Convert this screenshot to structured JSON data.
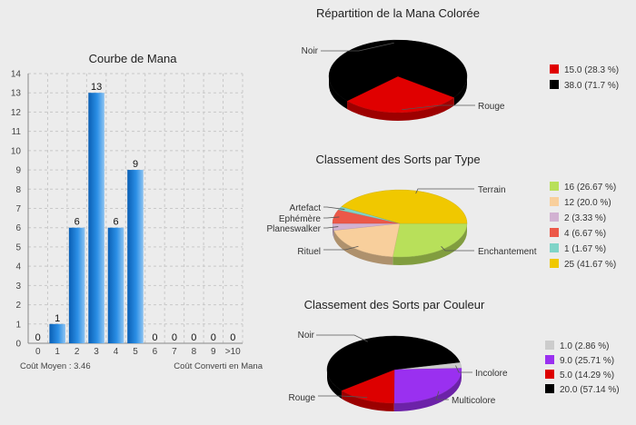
{
  "chart_data": [
    {
      "type": "bar",
      "title": "Courbe de Mana",
      "categories": [
        "0",
        "1",
        "2",
        "3",
        "4",
        "5",
        "6",
        "7",
        "8",
        "9",
        ">10"
      ],
      "values": [
        0,
        1,
        6,
        13,
        6,
        9,
        0,
        0,
        0,
        0,
        0
      ],
      "ylim": [
        0,
        14
      ],
      "yticks": [
        0,
        1,
        2,
        3,
        4,
        5,
        6,
        7,
        8,
        9,
        10,
        11,
        12,
        13,
        14
      ],
      "xlabel": "Coût Converti en Mana",
      "footer_left": "Coût Moyen : 3.46",
      "grid": true,
      "color": "#1f7fd4"
    },
    {
      "type": "pie",
      "title": "Répartition de la Mana Colorée",
      "slices": [
        {
          "name": "Rouge",
          "value": 15.0,
          "legend": "15.0 (28.3 %)",
          "color": "#e00000"
        },
        {
          "name": "Noir",
          "value": 38.0,
          "legend": "38.0 (71.7 %)",
          "color": "#000000"
        }
      ],
      "legend_position": "right"
    },
    {
      "type": "pie",
      "title": "Classement des Sorts par Type",
      "slices": [
        {
          "name": "Enchantement",
          "value": 16,
          "legend": "16 (26.67 %)",
          "color": "#b8e05a"
        },
        {
          "name": "Rituel",
          "value": 12,
          "legend": "12 (20.0 %)",
          "color": "#f8cf9c"
        },
        {
          "name": "Planeswalker",
          "value": 2,
          "legend": "2 (3.33 %)",
          "color": "#d2b2d2"
        },
        {
          "name": "Ephémère",
          "value": 4,
          "legend": "4 (6.67 %)",
          "color": "#ec5848"
        },
        {
          "name": "Artefact",
          "value": 1,
          "legend": "1 (1.67 %)",
          "color": "#7fd4c8"
        },
        {
          "name": "Terrain",
          "value": 25,
          "legend": "25 (41.67 %)",
          "color": "#f0c800"
        }
      ],
      "legend_position": "right"
    },
    {
      "type": "pie",
      "title": "Classement des Sorts par Couleur",
      "slices": [
        {
          "name": "Incolore",
          "value": 1.0,
          "legend": "1.0 (2.86 %)",
          "color": "#cccccc"
        },
        {
          "name": "Multicolore",
          "value": 9.0,
          "legend": "9.0 (25.71 %)",
          "color": "#9a30f0"
        },
        {
          "name": "Rouge",
          "value": 5.0,
          "legend": "5.0 (14.29 %)",
          "color": "#dd0000"
        },
        {
          "name": "Noir",
          "value": 20.0,
          "legend": "20.0 (57.14 %)",
          "color": "#000000"
        }
      ],
      "legend_position": "right"
    }
  ]
}
